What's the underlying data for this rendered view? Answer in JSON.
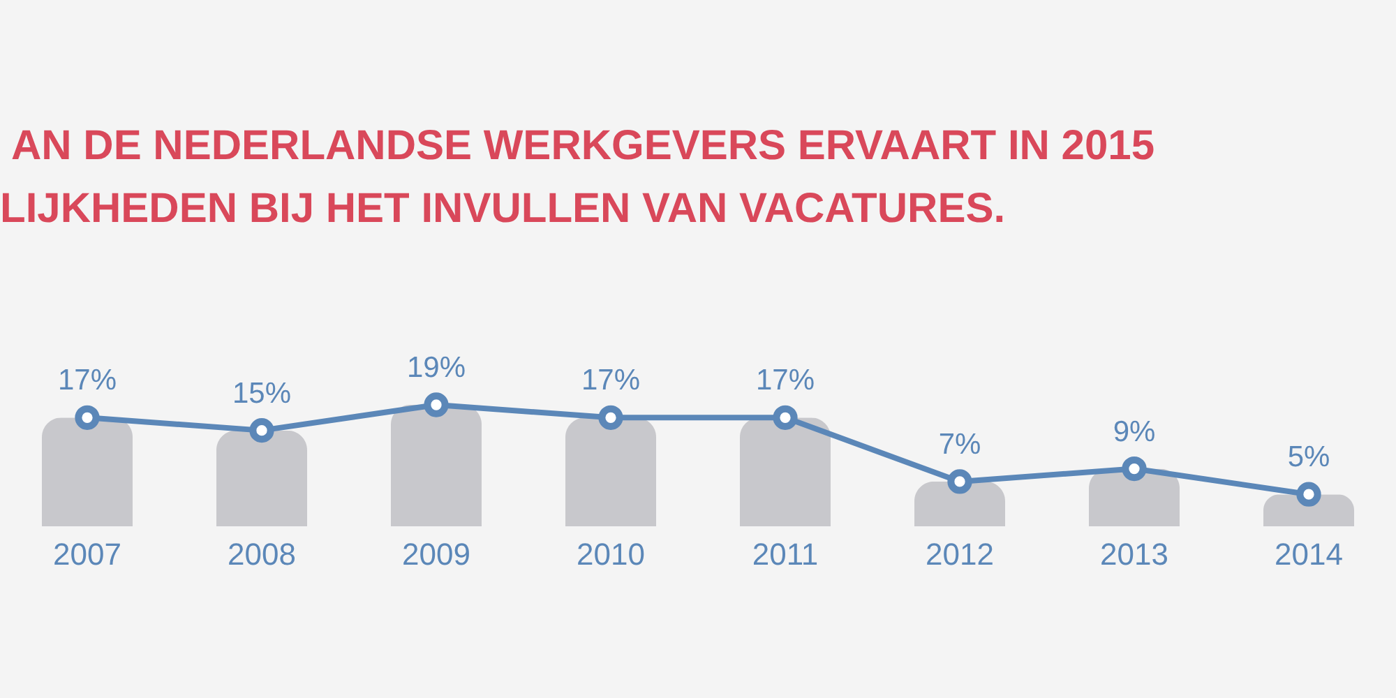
{
  "chart_data": {
    "type": "bar",
    "title": [
      "AN DE NEDERLANDSE WERKGEVERS ERVAART IN 2015",
      "LIJKHEDEN BIJ HET INVULLEN VAN VACATURES."
    ],
    "categories": [
      "2007",
      "2008",
      "2009",
      "2010",
      "2011",
      "2012",
      "2013",
      "2014"
    ],
    "series": [
      {
        "color": "#c8c8cc",
        "values": [
          17,
          15,
          19,
          17,
          17,
          7,
          9,
          5
        ]
      },
      {
        "type": "line",
        "color": "#5b87b8",
        "values": [
          17,
          15,
          19,
          17,
          17,
          7,
          9,
          5
        ],
        "value_labels": [
          "17%",
          "15%",
          "19%",
          "17%",
          "17%",
          "7%",
          "9%",
          "5%"
        ]
      }
    ],
    "tick_labels": "x",
    "marker": "circle",
    "line_style": "solid",
    "grid": false
  }
}
